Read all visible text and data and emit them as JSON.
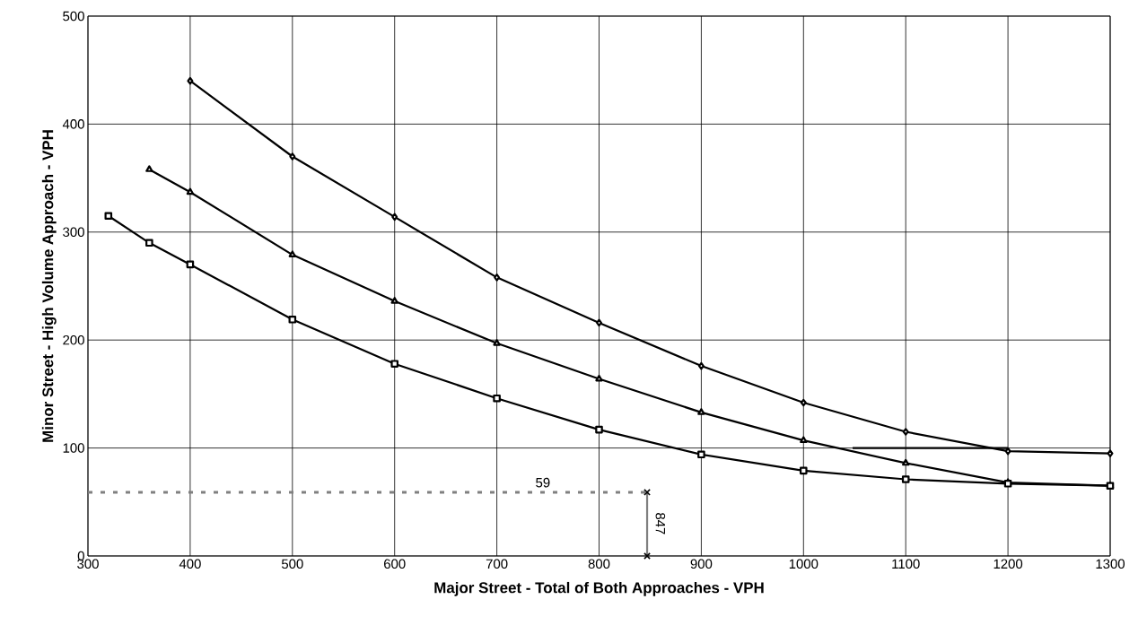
{
  "chart_data": {
    "type": "line",
    "xlabel": "Major Street - Total of Both Approaches - VPH",
    "ylabel": "Minor Street - High Volume Approach - VPH",
    "xlim": [
      300,
      1300
    ],
    "ylim": [
      0,
      500
    ],
    "xticks": [
      300,
      400,
      500,
      600,
      700,
      800,
      900,
      1000,
      1100,
      1200,
      1300
    ],
    "yticks": [
      0,
      100,
      200,
      300,
      400,
      500
    ],
    "grid": true,
    "series": [
      {
        "color": "#000000",
        "marker": "diamond",
        "x": [
          400,
          500,
          600,
          700,
          800,
          900,
          1000,
          1100,
          1200,
          1300
        ],
        "values": [
          440,
          370,
          314,
          258,
          216,
          176,
          142,
          115,
          97,
          95
        ]
      },
      {
        "color": "#000000",
        "marker": "triangle",
        "x": [
          360,
          400,
          500,
          600,
          700,
          800,
          900,
          1000,
          1100,
          1200,
          1300
        ],
        "values": [
          358,
          337,
          279,
          236,
          197,
          164,
          133,
          107,
          86,
          68,
          65
        ]
      },
      {
        "color": "#000000",
        "marker": "square",
        "x": [
          320,
          360,
          400,
          500,
          600,
          700,
          800,
          900,
          1000,
          1100,
          1200,
          1300
        ],
        "values": [
          315,
          290,
          270,
          219,
          178,
          146,
          117,
          94,
          79,
          71,
          67,
          65
        ]
      },
      {
        "color": "#000000",
        "marker": "none",
        "x": [
          1048,
          1200
        ],
        "values": [
          100,
          100
        ]
      },
      {
        "color": "#808080",
        "line_style": "dashed",
        "x": [
          300,
          847
        ],
        "values": [
          59,
          59
        ]
      },
      {
        "color": "#808080",
        "marker": "cross",
        "x": [
          847,
          847
        ],
        "values": [
          0,
          59
        ]
      }
    ],
    "annotations": [
      {
        "text": "59",
        "x": 745,
        "y": 59
      },
      {
        "text": "847",
        "x": 847,
        "y": 30
      }
    ]
  }
}
